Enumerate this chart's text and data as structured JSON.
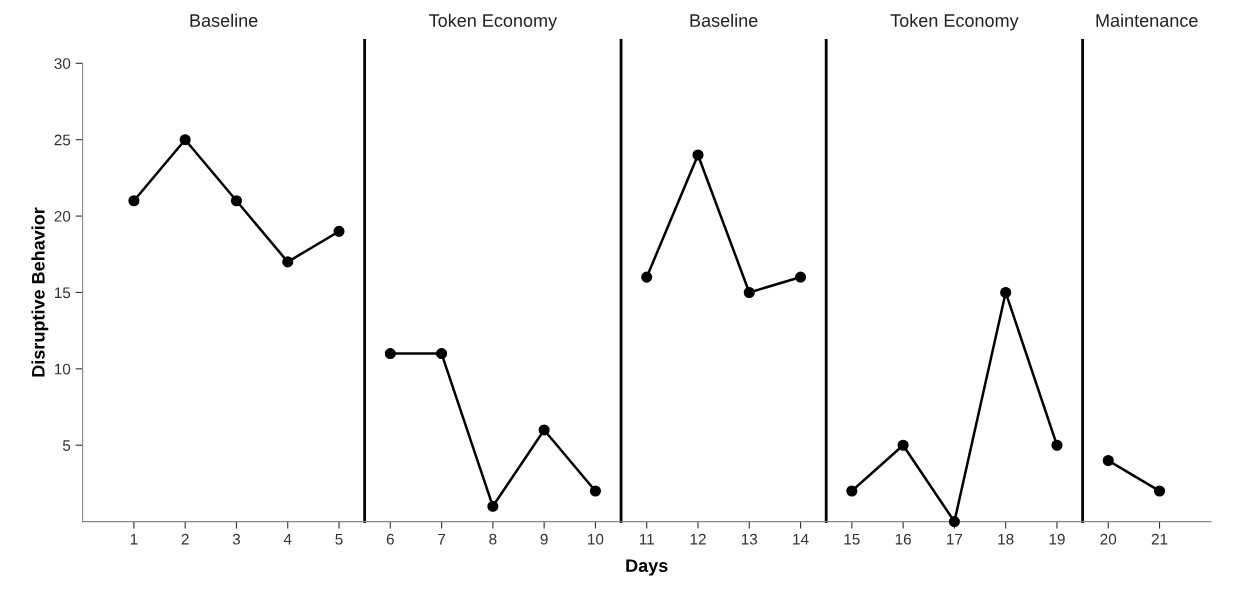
{
  "chart_data": {
    "type": "line",
    "xlabel": "Days",
    "ylabel": "Disruptive Behavior",
    "annotations": [
      "Baseline",
      "Token Economy",
      "Baseline",
      "Token Economy",
      "Maintenance"
    ],
    "series": [
      {
        "color": "#000000",
        "x": [
          1,
          2,
          3,
          4,
          5
        ],
        "values": [
          21,
          25,
          21,
          17,
          19
        ]
      },
      {
        "color": "#000000",
        "x": [
          6,
          7,
          8,
          9,
          10
        ],
        "values": [
          11,
          11,
          1,
          6,
          2
        ]
      },
      {
        "color": "#000000",
        "x": [
          11,
          12,
          13,
          14
        ],
        "values": [
          16,
          24,
          15,
          16
        ]
      },
      {
        "color": "#000000",
        "x": [
          15,
          16,
          17,
          18,
          19
        ],
        "values": [
          2,
          5,
          0,
          15,
          5
        ]
      },
      {
        "color": "#000000",
        "x": [
          20,
          21
        ],
        "values": [
          4,
          2
        ]
      }
    ],
    "ref_lines": [
      {
        "axis": "x",
        "value": 5.5,
        "color": "#000000"
      },
      {
        "axis": "x",
        "value": 10.5,
        "color": "#000000"
      },
      {
        "axis": "x",
        "value": 14.5,
        "color": "#000000"
      },
      {
        "axis": "x",
        "value": 19.5,
        "color": "#000000"
      }
    ],
    "xlim": [
      0,
      22
    ],
    "xticks": [
      1,
      2,
      3,
      4,
      5,
      6,
      7,
      8,
      9,
      10,
      11,
      12,
      13,
      14,
      15,
      16,
      17,
      18,
      19,
      20,
      21
    ],
    "ylim": [
      0,
      30
    ],
    "yticks": [
      5,
      10,
      15,
      20,
      25,
      30
    ],
    "marker": "circle",
    "line_style": "solid",
    "grid": false,
    "legend": false
  }
}
